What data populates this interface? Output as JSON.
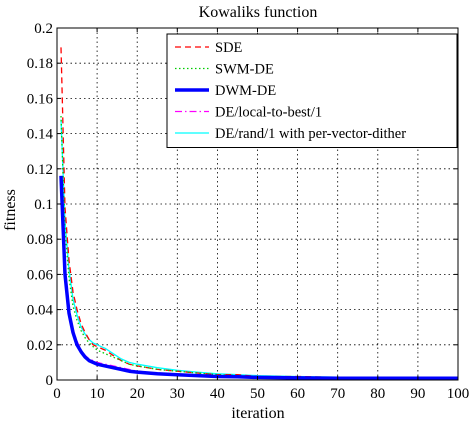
{
  "chart_data": {
    "type": "line",
    "title": "Kowaliks function",
    "xlabel": "iteration",
    "ylabel": "fitness",
    "xlim": [
      0,
      100
    ],
    "ylim": [
      0,
      0.2
    ],
    "xticks": [
      "0",
      "10",
      "20",
      "30",
      "40",
      "50",
      "60",
      "70",
      "80",
      "90",
      "100"
    ],
    "yticks": [
      "0",
      "0.02",
      "0.04",
      "0.06",
      "0.08",
      "0.1",
      "0.12",
      "0.14",
      "0.16",
      "0.18",
      "0.2"
    ],
    "grid": true,
    "legend_position": "top-right",
    "x": [
      1,
      2,
      3,
      4,
      5,
      6,
      7,
      8,
      9,
      10,
      12,
      14,
      16,
      18,
      20,
      25,
      30,
      35,
      40,
      45,
      50,
      60,
      70,
      80,
      90,
      100
    ],
    "series": [
      {
        "name": "SDE",
        "color": "#ff0000",
        "dash": "dashed",
        "values": [
          0.189,
          0.098,
          0.068,
          0.05,
          0.04,
          0.032,
          0.027,
          0.023,
          0.02,
          0.019,
          0.017,
          0.014,
          0.011,
          0.009,
          0.008,
          0.006,
          0.005,
          0.004,
          0.003,
          0.003,
          0.002,
          0.002,
          0.0015,
          0.0012,
          0.0012,
          0.0012
        ]
      },
      {
        "name": "SWM-DE",
        "color": "#00cc00",
        "dash": "dotted",
        "values": [
          0.15,
          0.085,
          0.058,
          0.042,
          0.034,
          0.028,
          0.024,
          0.021,
          0.019,
          0.017,
          0.015,
          0.013,
          0.011,
          0.009,
          0.008,
          0.006,
          0.005,
          0.004,
          0.003,
          0.0025,
          0.002,
          0.0015,
          0.0012,
          0.001,
          0.001,
          0.001
        ]
      },
      {
        "name": "DWM-DE",
        "color": "#0000ff",
        "dash": "solid",
        "values": [
          0.116,
          0.06,
          0.038,
          0.027,
          0.02,
          0.016,
          0.013,
          0.011,
          0.01,
          0.009,
          0.008,
          0.007,
          0.006,
          0.005,
          0.0045,
          0.0035,
          0.003,
          0.0025,
          0.002,
          0.0018,
          0.0015,
          0.0012,
          0.001,
          0.001,
          0.001,
          0.001
        ]
      },
      {
        "name": "DE/local-to-best/1",
        "color": "#ff00ff",
        "dash": "dashdot",
        "values": [
          0.112,
          0.062,
          0.04,
          0.029,
          0.022,
          0.017,
          0.014,
          0.012,
          0.011,
          0.01,
          0.009,
          0.008,
          0.007,
          0.006,
          0.005,
          0.004,
          0.003,
          0.0028,
          0.0024,
          0.002,
          0.0018,
          0.0014,
          0.0012,
          0.001,
          0.001,
          0.001
        ]
      },
      {
        "name": "DE/rand/1 with per-vector-dither",
        "color": "#00ffff",
        "dash": "solid",
        "values": [
          0.148,
          0.09,
          0.063,
          0.046,
          0.037,
          0.03,
          0.026,
          0.023,
          0.021,
          0.02,
          0.018,
          0.015,
          0.012,
          0.01,
          0.009,
          0.007,
          0.0055,
          0.0045,
          0.0035,
          0.003,
          0.0025,
          0.002,
          0.0016,
          0.0014,
          0.0013,
          0.0013
        ]
      }
    ]
  }
}
